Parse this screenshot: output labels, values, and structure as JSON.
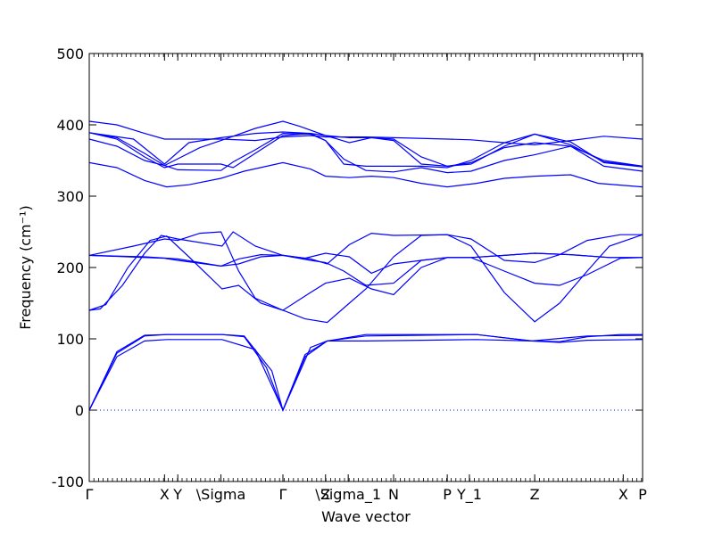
{
  "chart_data": {
    "type": "line",
    "title": "",
    "xlabel": "Wave vector",
    "ylabel": "Frequency (cm⁻¹)",
    "ylim": [
      -100,
      500
    ],
    "yticks": [
      -100,
      0,
      100,
      200,
      300,
      400,
      500
    ],
    "grid": false,
    "legend": "none",
    "line_color": "#0000ff",
    "zero_line_color": "#0000ff",
    "xticks": [
      {
        "label": "Γ",
        "x": 0
      },
      {
        "label": "X",
        "x": 0.136
      },
      {
        "label": "Y",
        "x": 0.16
      },
      {
        "label": "\\Sigma",
        "x": 0.238
      },
      {
        "label": "Γ",
        "x": 0.35
      },
      {
        "label": "Z",
        "x": 0.427
      },
      {
        "label": "\\Sigma_1",
        "x": 0.468
      },
      {
        "label": "N",
        "x": 0.55
      },
      {
        "label": "P",
        "x": 0.647
      },
      {
        "label": "Y_1",
        "x": 0.687
      },
      {
        "label": "Z",
        "x": 0.805
      },
      {
        "label": "X",
        "x": 0.965
      },
      {
        "label": "P",
        "x": 1.0
      }
    ],
    "series": [
      {
        "values": [
          [
            0,
            0
          ],
          [
            0.05,
            75
          ],
          [
            0.1,
            97
          ],
          [
            0.14,
            99
          ],
          [
            0.24,
            99
          ],
          [
            0.3,
            85
          ],
          [
            0.35,
            0
          ],
          [
            0.4,
            88
          ],
          [
            0.43,
            97
          ],
          [
            0.5,
            97
          ],
          [
            0.6,
            98
          ],
          [
            0.7,
            99
          ],
          [
            0.8,
            97
          ],
          [
            0.85,
            95
          ],
          [
            0.9,
            98
          ],
          [
            1.0,
            99
          ]
        ]
      },
      {
        "values": [
          [
            0,
            0
          ],
          [
            0.05,
            80
          ],
          [
            0.1,
            104
          ],
          [
            0.14,
            106
          ],
          [
            0.24,
            106
          ],
          [
            0.28,
            103
          ],
          [
            0.32,
            60
          ],
          [
            0.35,
            0
          ],
          [
            0.39,
            75
          ],
          [
            0.43,
            97
          ],
          [
            0.5,
            106
          ],
          [
            0.6,
            106
          ],
          [
            0.7,
            106
          ],
          [
            0.8,
            97
          ],
          [
            0.85,
            96
          ],
          [
            0.9,
            103
          ],
          [
            0.96,
            106
          ],
          [
            1.0,
            106
          ]
        ]
      },
      {
        "values": [
          [
            0,
            0
          ],
          [
            0.05,
            82
          ],
          [
            0.1,
            105
          ],
          [
            0.14,
            106
          ],
          [
            0.24,
            106
          ],
          [
            0.28,
            104
          ],
          [
            0.33,
            55
          ],
          [
            0.35,
            0
          ],
          [
            0.39,
            78
          ],
          [
            0.43,
            97
          ],
          [
            0.5,
            104
          ],
          [
            0.6,
            105
          ],
          [
            0.7,
            106
          ],
          [
            0.8,
            97
          ],
          [
            0.9,
            104
          ],
          [
            1.0,
            105
          ]
        ]
      },
      {
        "values": [
          [
            0,
            140
          ],
          [
            0.02,
            142
          ],
          [
            0.06,
            175
          ],
          [
            0.1,
            220
          ],
          [
            0.13,
            245
          ],
          [
            0.16,
            240
          ],
          [
            0.24,
            230
          ],
          [
            0.26,
            250
          ],
          [
            0.3,
            230
          ],
          [
            0.35,
            217
          ],
          [
            0.4,
            212
          ],
          [
            0.43,
            205
          ],
          [
            0.47,
            232
          ],
          [
            0.51,
            248
          ],
          [
            0.55,
            245
          ],
          [
            0.647,
            246
          ],
          [
            0.69,
            240
          ],
          [
            0.75,
            210
          ],
          [
            0.805,
            207
          ],
          [
            0.85,
            218
          ],
          [
            0.9,
            238
          ],
          [
            0.96,
            246
          ],
          [
            1.0,
            246
          ]
        ]
      },
      {
        "values": [
          [
            0,
            140
          ],
          [
            0.03,
            148
          ],
          [
            0.07,
            200
          ],
          [
            0.11,
            238
          ],
          [
            0.14,
            244
          ],
          [
            0.18,
            215
          ],
          [
            0.24,
            170
          ],
          [
            0.27,
            175
          ],
          [
            0.31,
            150
          ],
          [
            0.35,
            140
          ],
          [
            0.39,
            128
          ],
          [
            0.43,
            123
          ],
          [
            0.47,
            150
          ],
          [
            0.5,
            170
          ],
          [
            0.55,
            215
          ],
          [
            0.6,
            245
          ],
          [
            0.647,
            246
          ],
          [
            0.69,
            230
          ],
          [
            0.75,
            165
          ],
          [
            0.805,
            124
          ],
          [
            0.85,
            150
          ],
          [
            0.9,
            195
          ],
          [
            0.94,
            230
          ],
          [
            1.0,
            246
          ]
        ]
      },
      {
        "values": [
          [
            0,
            217
          ],
          [
            0.08,
            230
          ],
          [
            0.136,
            240
          ],
          [
            0.16,
            238
          ],
          [
            0.2,
            248
          ],
          [
            0.238,
            250
          ],
          [
            0.27,
            195
          ],
          [
            0.3,
            157
          ],
          [
            0.35,
            140
          ],
          [
            0.4,
            165
          ],
          [
            0.427,
            178
          ],
          [
            0.47,
            185
          ],
          [
            0.51,
            170
          ],
          [
            0.55,
            162
          ],
          [
            0.6,
            200
          ],
          [
            0.647,
            214
          ],
          [
            0.69,
            214
          ],
          [
            0.75,
            195
          ],
          [
            0.805,
            178
          ],
          [
            0.85,
            175
          ],
          [
            0.9,
            190
          ],
          [
            0.96,
            213
          ],
          [
            1.0,
            214
          ]
        ]
      },
      {
        "values": [
          [
            0,
            217
          ],
          [
            0.1,
            215
          ],
          [
            0.16,
            212
          ],
          [
            0.238,
            202
          ],
          [
            0.27,
            205
          ],
          [
            0.31,
            215
          ],
          [
            0.35,
            217
          ],
          [
            0.4,
            210
          ],
          [
            0.427,
            207
          ],
          [
            0.46,
            195
          ],
          [
            0.5,
            175
          ],
          [
            0.55,
            178
          ],
          [
            0.6,
            210
          ],
          [
            0.647,
            214
          ],
          [
            0.69,
            214
          ],
          [
            0.75,
            217
          ],
          [
            0.805,
            220
          ],
          [
            0.87,
            218
          ],
          [
            0.94,
            214
          ],
          [
            1.0,
            214
          ]
        ]
      },
      {
        "values": [
          [
            0,
            217
          ],
          [
            0.136,
            213
          ],
          [
            0.16,
            210
          ],
          [
            0.238,
            202
          ],
          [
            0.27,
            212
          ],
          [
            0.31,
            218
          ],
          [
            0.35,
            217
          ],
          [
            0.39,
            213
          ],
          [
            0.427,
            220
          ],
          [
            0.47,
            215
          ],
          [
            0.51,
            192
          ],
          [
            0.55,
            205
          ],
          [
            0.6,
            210
          ],
          [
            0.647,
            214
          ],
          [
            0.69,
            214
          ],
          [
            0.75,
            217
          ],
          [
            0.805,
            220
          ],
          [
            0.87,
            218
          ],
          [
            0.94,
            214
          ],
          [
            1.0,
            214
          ]
        ]
      },
      {
        "values": [
          [
            0,
            347
          ],
          [
            0.05,
            340
          ],
          [
            0.1,
            322
          ],
          [
            0.14,
            313
          ],
          [
            0.18,
            316
          ],
          [
            0.238,
            325
          ],
          [
            0.28,
            335
          ],
          [
            0.35,
            347
          ],
          [
            0.4,
            338
          ],
          [
            0.427,
            328
          ],
          [
            0.47,
            326
          ],
          [
            0.51,
            328
          ],
          [
            0.55,
            326
          ],
          [
            0.6,
            318
          ],
          [
            0.647,
            313
          ],
          [
            0.7,
            318
          ],
          [
            0.75,
            325
          ],
          [
            0.805,
            328
          ],
          [
            0.87,
            330
          ],
          [
            0.92,
            318
          ],
          [
            1.0,
            313
          ]
        ]
      },
      {
        "values": [
          [
            0,
            380
          ],
          [
            0.05,
            370
          ],
          [
            0.1,
            350
          ],
          [
            0.136,
            343
          ],
          [
            0.16,
            337
          ],
          [
            0.238,
            336
          ],
          [
            0.26,
            348
          ],
          [
            0.3,
            365
          ],
          [
            0.35,
            388
          ],
          [
            0.4,
            387
          ],
          [
            0.427,
            378
          ],
          [
            0.46,
            352
          ],
          [
            0.5,
            336
          ],
          [
            0.55,
            334
          ],
          [
            0.6,
            340
          ],
          [
            0.647,
            333
          ],
          [
            0.69,
            335
          ],
          [
            0.75,
            350
          ],
          [
            0.805,
            358
          ],
          [
            0.87,
            370
          ],
          [
            0.93,
            342
          ],
          [
            1.0,
            335
          ]
        ]
      },
      {
        "values": [
          [
            0,
            389
          ],
          [
            0.05,
            380
          ],
          [
            0.1,
            355
          ],
          [
            0.136,
            340
          ],
          [
            0.16,
            345
          ],
          [
            0.238,
            345
          ],
          [
            0.26,
            340
          ],
          [
            0.3,
            360
          ],
          [
            0.35,
            385
          ],
          [
            0.4,
            388
          ],
          [
            0.427,
            378
          ],
          [
            0.46,
            345
          ],
          [
            0.5,
            342
          ],
          [
            0.55,
            342
          ],
          [
            0.6,
            342
          ],
          [
            0.647,
            340
          ],
          [
            0.69,
            350
          ],
          [
            0.75,
            375
          ],
          [
            0.805,
            387
          ],
          [
            0.87,
            376
          ],
          [
            0.93,
            347
          ],
          [
            1.0,
            341
          ]
        ]
      },
      {
        "values": [
          [
            0,
            405
          ],
          [
            0.05,
            400
          ],
          [
            0.1,
            388
          ],
          [
            0.136,
            380
          ],
          [
            0.238,
            380
          ],
          [
            0.3,
            378
          ],
          [
            0.35,
            383
          ],
          [
            0.4,
            385
          ],
          [
            0.427,
            383
          ],
          [
            0.5,
            383
          ],
          [
            0.55,
            382
          ],
          [
            0.647,
            380
          ],
          [
            0.69,
            379
          ],
          [
            0.75,
            375
          ],
          [
            0.805,
            372
          ],
          [
            0.87,
            378
          ],
          [
            0.93,
            384
          ],
          [
            1.0,
            380
          ]
        ]
      },
      {
        "values": [
          [
            0,
            389
          ],
          [
            0.05,
            382
          ],
          [
            0.1,
            360
          ],
          [
            0.136,
            343
          ],
          [
            0.2,
            368
          ],
          [
            0.238,
            378
          ],
          [
            0.3,
            395
          ],
          [
            0.35,
            405
          ],
          [
            0.38,
            398
          ],
          [
            0.427,
            385
          ],
          [
            0.47,
            382
          ],
          [
            0.51,
            382
          ],
          [
            0.55,
            378
          ],
          [
            0.6,
            345
          ],
          [
            0.647,
            342
          ],
          [
            0.69,
            345
          ],
          [
            0.75,
            370
          ],
          [
            0.805,
            387
          ],
          [
            0.87,
            372
          ],
          [
            0.93,
            348
          ],
          [
            1.0,
            342
          ]
        ]
      },
      {
        "values": [
          [
            0,
            389
          ],
          [
            0.08,
            380
          ],
          [
            0.136,
            345
          ],
          [
            0.18,
            375
          ],
          [
            0.238,
            382
          ],
          [
            0.3,
            388
          ],
          [
            0.35,
            390
          ],
          [
            0.4,
            388
          ],
          [
            0.427,
            385
          ],
          [
            0.47,
            375
          ],
          [
            0.51,
            382
          ],
          [
            0.55,
            380
          ],
          [
            0.6,
            355
          ],
          [
            0.647,
            342
          ],
          [
            0.69,
            347
          ],
          [
            0.75,
            368
          ],
          [
            0.805,
            375
          ],
          [
            0.87,
            370
          ],
          [
            0.93,
            350
          ],
          [
            1.0,
            342
          ]
        ]
      }
    ]
  }
}
